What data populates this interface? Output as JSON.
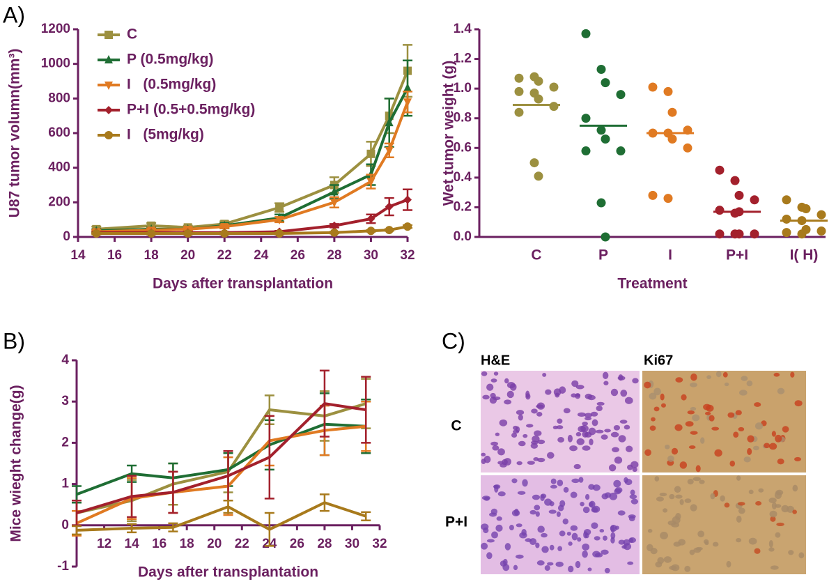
{
  "panel_labels": [
    "A)",
    "B)",
    "C)"
  ],
  "chart_data": [
    {
      "type": "line",
      "xlabel": "Days after transplantation",
      "ylabel": "U87 tumor volumn(mm³)",
      "x": [
        15,
        18,
        20,
        22,
        25,
        28,
        30,
        31,
        32
      ],
      "xlim": [
        14,
        32
      ],
      "xticks": [
        14,
        16,
        18,
        20,
        22,
        24,
        26,
        28,
        30,
        32
      ],
      "ylim": [
        0,
        1200
      ],
      "yticks": [
        0,
        200,
        400,
        600,
        800,
        1000,
        1200
      ],
      "legend": "upper left",
      "series": [
        {
          "name": "C",
          "color": "#9c9040",
          "marker": "square",
          "values": [
            45,
            65,
            55,
            75,
            170,
            300,
            480,
            700,
            960
          ],
          "errors": [
            15,
            15,
            10,
            15,
            25,
            45,
            70,
            100,
            150
          ]
        },
        {
          "name": "P (0.5mg/kg)",
          "color": "#1f6e34",
          "marker": "triangle-up",
          "values": [
            35,
            45,
            45,
            65,
            110,
            260,
            360,
            660,
            860
          ],
          "errors": [
            10,
            10,
            10,
            15,
            20,
            40,
            60,
            140,
            160
          ]
        },
        {
          "name": "I   (0.5mg/kg)",
          "color": "#e07a22",
          "marker": "triangle-down",
          "values": [
            30,
            40,
            45,
            60,
            100,
            200,
            320,
            500,
            780
          ],
          "errors": [
            10,
            10,
            10,
            10,
            15,
            30,
            40,
            40,
            60
          ]
        },
        {
          "name": "P+I (0.5+0.5mg/kg)",
          "color": "#a3202c",
          "marker": "diamond",
          "values": [
            25,
            25,
            25,
            25,
            30,
            65,
            105,
            175,
            215
          ],
          "errors": [
            5,
            5,
            5,
            5,
            5,
            10,
            25,
            50,
            60
          ]
        },
        {
          "name": "I   (5mg/kg)",
          "color": "#a87a1c",
          "marker": "circle",
          "values": [
            20,
            20,
            20,
            20,
            20,
            25,
            35,
            40,
            60
          ],
          "errors": [
            5,
            5,
            5,
            5,
            5,
            5,
            5,
            5,
            8
          ]
        }
      ]
    },
    {
      "type": "strip",
      "xlabel": "Treatment",
      "ylabel": "Wet tumor weight (g)",
      "categories": [
        "C",
        "P",
        "I",
        "P+I",
        "I( H)"
      ],
      "colors": [
        "#9c9040",
        "#1f6e34",
        "#e07a22",
        "#a3202c",
        "#a87a1c"
      ],
      "ylim": [
        0,
        1.4
      ],
      "yticks": [
        {
          "value": 0,
          "label": "0.0"
        },
        0.2,
        0.4,
        0.6,
        0.8,
        {
          "value": 1,
          "label": "1.0"
        },
        1.2,
        1.4
      ],
      "points": [
        [
          1.07,
          1.08,
          1.05,
          1.01,
          0.98,
          0.97,
          0.93,
          0.88,
          0.84,
          0.5,
          0.41
        ],
        [
          1.37,
          1.13,
          1.04,
          0.96,
          0.8,
          0.72,
          0.66,
          0.58,
          0.58,
          0.23,
          0
        ],
        [
          1.01,
          0.98,
          0.84,
          0.72,
          0.7,
          0.7,
          0.66,
          0.6,
          0.28,
          0.26
        ],
        [
          0.45,
          0.38,
          0.28,
          0.25,
          0.18,
          0.16,
          0.17,
          0.02,
          0.02,
          0.02,
          0.02
        ],
        [
          0.25,
          0.2,
          0.19,
          0.15,
          0.12,
          0.11,
          0.05,
          0.04,
          0.03,
          0.02
        ]
      ],
      "means": [
        0.89,
        0.75,
        0.7,
        0.17,
        0.11
      ]
    },
    {
      "type": "line",
      "xlabel": "Days after transplantation",
      "ylabel": "Mice wieght change(g)",
      "x": [
        10,
        14,
        17,
        21,
        24,
        28,
        31
      ],
      "xlim": [
        10,
        32
      ],
      "xticks": [
        12,
        14,
        16,
        18,
        20,
        22,
        24,
        26,
        28,
        30,
        32
      ],
      "ylim": [
        -1,
        4
      ],
      "yticks": [
        -1,
        0,
        1,
        2,
        3,
        4
      ],
      "series": [
        {
          "color": "#9c9040",
          "values": [
            0.3,
            0.6,
            1.0,
            1.3,
            2.8,
            2.65,
            2.95
          ],
          "errors": [
            0.3,
            0.5,
            0.5,
            0.5,
            0.35,
            0.6,
            0.6
          ]
        },
        {
          "color": "#1f6e34",
          "values": [
            0.75,
            1.25,
            1.15,
            1.35,
            1.95,
            2.45,
            2.4
          ],
          "errors": [
            0.2,
            0.2,
            0.35,
            0.4,
            0.6,
            0.75,
            0.65
          ]
        },
        {
          "color": "#e07a22",
          "values": [
            0.05,
            0.65,
            0.8,
            0.95,
            2.05,
            2.3,
            2.4
          ],
          "errors": [
            0.3,
            0.5,
            0.5,
            0.7,
            0.6,
            0.6,
            0.6
          ]
        },
        {
          "color": "#a3202c",
          "values": [
            0.3,
            0.7,
            0.8,
            1.2,
            1.65,
            2.95,
            2.8
          ],
          "errors": [
            0.3,
            0.5,
            0.5,
            0.6,
            1.0,
            0.8,
            0.8
          ]
        },
        {
          "color": "#a87a1c",
          "values": [
            -0.12,
            -0.07,
            -0.05,
            0.45,
            -0.1,
            0.55,
            0.22
          ],
          "errors": [
            0.1,
            0.1,
            0.1,
            0.15,
            0.4,
            0.2,
            0.1
          ]
        }
      ]
    }
  ],
  "image_panel": {
    "columns": [
      "H&E",
      "Ki67"
    ],
    "rows": [
      "C",
      "P+I"
    ]
  }
}
